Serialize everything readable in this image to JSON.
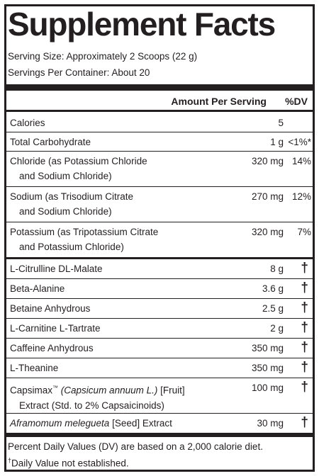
{
  "title": "Supplement Facts",
  "serving_size": "Serving Size: Approximately 2 Scoops (22 g)",
  "servings_per_container": "Servings Per Container: About 20",
  "header": {
    "amount": "Amount Per Serving",
    "dv": "%DV"
  },
  "rows": [
    {
      "name": "Calories",
      "amount": "5",
      "dv": ""
    },
    {
      "name": "Total Carbohydrate",
      "amount": "1 g",
      "dv": "<1%*"
    },
    {
      "name": "Chloride (as Potassium Chloride",
      "name2": "and Sodium Chloride)",
      "amount": "320 mg",
      "dv": "14%"
    },
    {
      "name": "Sodium (as Trisodium Citrate",
      "name2": "and Sodium Chloride)",
      "amount": "270 mg",
      "dv": "12%"
    },
    {
      "name": "Potassium (as Tripotassium Citrate",
      "name2": "and Potassium Chloride)",
      "amount": "320 mg",
      "dv": "7%"
    },
    {
      "name": "L-Citrulline DL-Malate",
      "amount": "8 g",
      "dv": "†"
    },
    {
      "name": "Beta-Alanine",
      "amount": "3.6 g",
      "dv": "†"
    },
    {
      "name": "Betaine Anhydrous",
      "amount": "2.5 g",
      "dv": "†"
    },
    {
      "name": "L-Carnitine L-Tartrate",
      "amount": "2 g",
      "dv": "†"
    },
    {
      "name": "Caffeine Anhydrous",
      "amount": "350 mg",
      "dv": "†"
    },
    {
      "name": "L-Theanine",
      "amount": "350 mg",
      "dv": "†"
    },
    {
      "name": "Capsimax",
      "name_tm": "™",
      "name_italic": "(Capsicum annuum L.)",
      "name_tail": "[Fruit]",
      "name2": "Extract (Std. to 2% Capsaicinoids)",
      "amount": "100 mg",
      "dv": "†"
    },
    {
      "name_italic": "Aframomum melegueta",
      "name_tail": "[Seed] Extract",
      "amount": "30 mg",
      "dv": "†"
    }
  ],
  "footnote_1": "Percent Daily Values (DV) are based on a 2,000 calorie diet.",
  "footnote_2_mark": "†",
  "footnote_2": "Daily Value not established."
}
